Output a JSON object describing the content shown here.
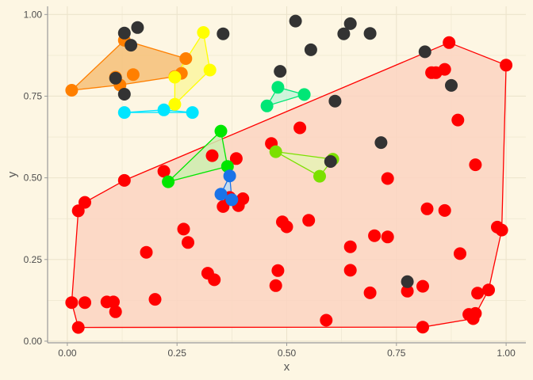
{
  "chart_data": {
    "type": "scatter",
    "title": "",
    "xlabel": "x",
    "ylabel": "y",
    "xlim": [
      -0.045,
      1.045
    ],
    "ylim": [
      -0.005,
      1.025
    ],
    "x_ticks": [
      0,
      0.25,
      0.5,
      0.75,
      1
    ],
    "x_tick_labels": [
      "0.00",
      "0.25",
      "0.50",
      "0.75",
      "1.00"
    ],
    "y_ticks": [
      0,
      0.25,
      0.5,
      0.75,
      1
    ],
    "y_tick_labels": [
      "0.00",
      "0.25",
      "0.50",
      "0.75",
      "1.00"
    ],
    "grid": true,
    "legend": "none",
    "background_color": "#fdf6e3",
    "grid_color": "#ece4cc",
    "axis_color": "#9a9a9a",
    "point_radius_hint": "large",
    "series": [
      {
        "color": "#ff0000",
        "fill": "#fcd3c1",
        "hull": true,
        "points": [
          [
            0.01,
            0.118
          ],
          [
            0.025,
            0.399
          ],
          [
            0.025,
            0.042
          ],
          [
            0.04,
            0.425
          ],
          [
            0.04,
            0.118
          ],
          [
            0.09,
            0.12
          ],
          [
            0.105,
            0.12
          ],
          [
            0.11,
            0.09
          ],
          [
            0.13,
            0.492
          ],
          [
            0.18,
            0.272
          ],
          [
            0.2,
            0.128
          ],
          [
            0.22,
            0.52
          ],
          [
            0.265,
            0.343
          ],
          [
            0.275,
            0.302
          ],
          [
            0.32,
            0.208
          ],
          [
            0.335,
            0.188
          ],
          [
            0.33,
            0.568
          ],
          [
            0.355,
            0.412
          ],
          [
            0.37,
            0.44
          ],
          [
            0.385,
            0.559
          ],
          [
            0.39,
            0.415
          ],
          [
            0.4,
            0.436
          ],
          [
            0.465,
            0.605
          ],
          [
            0.475,
            0.17
          ],
          [
            0.48,
            0.216
          ],
          [
            0.49,
            0.365
          ],
          [
            0.5,
            0.35
          ],
          [
            0.53,
            0.653
          ],
          [
            0.55,
            0.37
          ],
          [
            0.59,
            0.064
          ],
          [
            0.645,
            0.289
          ],
          [
            0.645,
            0.217
          ],
          [
            0.69,
            0.148
          ],
          [
            0.7,
            0.323
          ],
          [
            0.73,
            0.319
          ],
          [
            0.73,
            0.498
          ],
          [
            0.775,
            0.153
          ],
          [
            0.81,
            0.168
          ],
          [
            0.81,
            0.043
          ],
          [
            0.82,
            0.405
          ],
          [
            0.83,
            0.822
          ],
          [
            0.84,
            0.822
          ],
          [
            0.86,
            0.4
          ],
          [
            0.86,
            0.832
          ],
          [
            0.87,
            0.914
          ],
          [
            0.89,
            0.677
          ],
          [
            0.895,
            0.268
          ],
          [
            0.915,
            0.082
          ],
          [
            0.925,
            0.069
          ],
          [
            0.93,
            0.085
          ],
          [
            0.93,
            0.54
          ],
          [
            0.935,
            0.147
          ],
          [
            0.96,
            0.157
          ],
          [
            0.98,
            0.349
          ],
          [
            0.99,
            0.34
          ],
          [
            1.0,
            0.845
          ]
        ]
      },
      {
        "color": "#ff7f00",
        "fill": "#f6c078",
        "hull": true,
        "points": [
          [
            0.01,
            0.768
          ],
          [
            0.11,
            0.808
          ],
          [
            0.12,
            0.784
          ],
          [
            0.13,
            0.921
          ],
          [
            0.15,
            0.816
          ],
          [
            0.245,
            0.81
          ],
          [
            0.26,
            0.82
          ],
          [
            0.27,
            0.865
          ]
        ]
      },
      {
        "color": "#ffff00",
        "fill": "#fbf6a0",
        "hull": true,
        "points": [
          [
            0.245,
            0.725
          ],
          [
            0.245,
            0.808
          ],
          [
            0.31,
            0.945
          ],
          [
            0.325,
            0.83
          ]
        ]
      },
      {
        "color": "#00e5ff",
        "fill": "#bff5f8",
        "hull": true,
        "points": [
          [
            0.13,
            0.7
          ],
          [
            0.22,
            0.708
          ],
          [
            0.285,
            0.7
          ]
        ]
      },
      {
        "color": "#00e676",
        "fill": "#c6f5d9",
        "hull": true,
        "points": [
          [
            0.455,
            0.72
          ],
          [
            0.48,
            0.777
          ],
          [
            0.54,
            0.755
          ]
        ]
      },
      {
        "color": "#00e600",
        "fill": "#cdeeb0",
        "hull": true,
        "points": [
          [
            0.23,
            0.488
          ],
          [
            0.35,
            0.643
          ],
          [
            0.365,
            0.535
          ]
        ]
      },
      {
        "color": "#7be000",
        "fill": "#e6f2b5",
        "hull": true,
        "points": [
          [
            0.475,
            0.58
          ],
          [
            0.575,
            0.505
          ],
          [
            0.605,
            0.557
          ]
        ]
      },
      {
        "color": "#1a73e8",
        "fill": "#c0dcf2",
        "hull": true,
        "points": [
          [
            0.35,
            0.45
          ],
          [
            0.37,
            0.506
          ],
          [
            0.375,
            0.433
          ]
        ]
      },
      {
        "color": "#333333",
        "hull": false,
        "points": [
          [
            0.13,
            0.943
          ],
          [
            0.145,
            0.906
          ],
          [
            0.16,
            0.96
          ],
          [
            0.11,
            0.805
          ],
          [
            0.13,
            0.756
          ],
          [
            0.355,
            0.941
          ],
          [
            0.485,
            0.826
          ],
          [
            0.52,
            0.98
          ],
          [
            0.555,
            0.892
          ],
          [
            0.6,
            0.55
          ],
          [
            0.61,
            0.735
          ],
          [
            0.63,
            0.941
          ],
          [
            0.645,
            0.972
          ],
          [
            0.69,
            0.942
          ],
          [
            0.715,
            0.608
          ],
          [
            0.775,
            0.182
          ],
          [
            0.815,
            0.886
          ],
          [
            0.875,
            0.783
          ]
        ]
      }
    ]
  }
}
